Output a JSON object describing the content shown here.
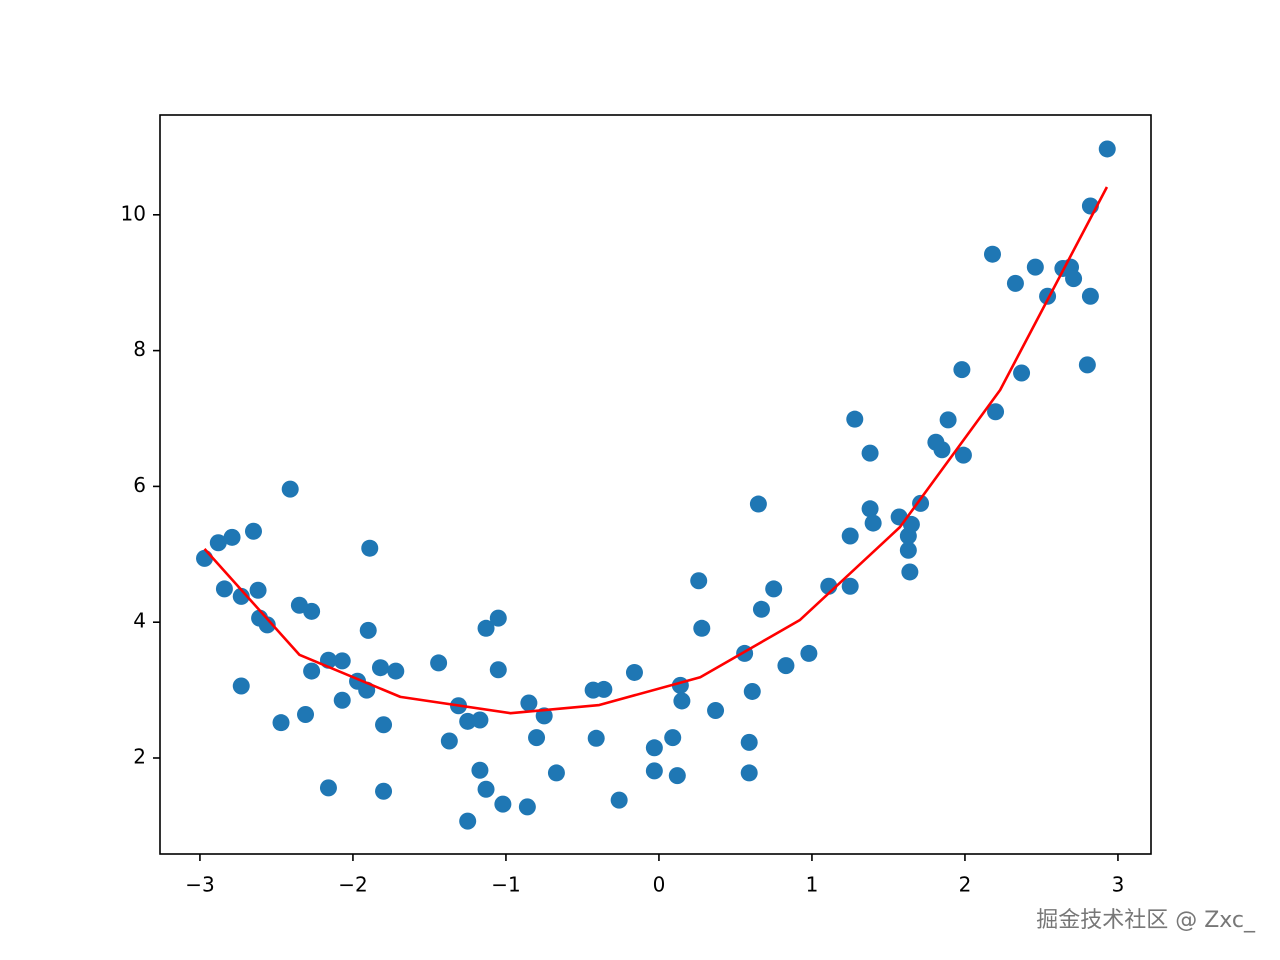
{
  "chart_data": {
    "type": "scatter",
    "xlim": [
      -3.261,
      3.216
    ],
    "ylim": [
      0.586,
      11.47
    ],
    "xticks": [
      {
        "value": -3,
        "label": "−3"
      },
      {
        "value": -2,
        "label": "−2"
      },
      {
        "value": -1,
        "label": "−1"
      },
      0,
      1,
      2,
      3
    ],
    "yticks": [
      2,
      4,
      6,
      8,
      10
    ],
    "grid": false,
    "watermark": "掘金技术社区 @ Zxc_",
    "series": [
      {
        "type": "scatter",
        "color": "#1f77b4",
        "x": [
          -2.97,
          -2.88,
          -2.79,
          -2.65,
          -2.84,
          -2.73,
          -2.62,
          -2.61,
          -2.56,
          -2.73,
          -2.41,
          -2.35,
          -2.27,
          -2.47,
          -2.31,
          -2.27,
          -2.16,
          -2.07,
          -2.16,
          -2.07,
          -1.97,
          -1.91,
          -1.9,
          -1.89,
          -1.82,
          -1.72,
          -1.8,
          -1.8,
          -1.44,
          -1.37,
          -1.31,
          -1.25,
          -1.25,
          -1.17,
          -1.17,
          -1.13,
          -1.13,
          -1.05,
          -1.05,
          -1.02,
          -0.86,
          -0.85,
          -0.8,
          -0.75,
          -0.67,
          -0.43,
          -0.36,
          -0.41,
          -0.26,
          -0.16,
          -0.03,
          -0.03,
          0.09,
          0.12,
          0.14,
          0.15,
          0.26,
          0.28,
          0.37,
          0.56,
          0.59,
          0.59,
          0.61,
          0.65,
          0.67,
          0.75,
          0.83,
          0.98,
          1.11,
          1.25,
          1.25,
          1.28,
          1.38,
          1.38,
          1.4,
          1.57,
          1.63,
          1.63,
          1.65,
          1.64,
          1.71,
          1.81,
          1.85,
          1.89,
          1.98,
          1.99,
          2.18,
          2.2,
          2.33,
          2.37,
          2.46,
          2.54,
          2.64,
          2.69,
          2.71,
          2.8,
          2.82,
          2.82,
          2.93
        ],
        "values": [
          4.94,
          5.17,
          5.25,
          5.34,
          4.49,
          4.38,
          4.47,
          4.06,
          3.96,
          3.06,
          5.96,
          4.25,
          4.16,
          2.52,
          2.64,
          3.28,
          3.44,
          3.43,
          1.56,
          2.85,
          3.13,
          3.0,
          3.88,
          5.09,
          3.33,
          3.28,
          2.49,
          1.51,
          3.4,
          2.25,
          2.77,
          1.07,
          2.54,
          2.56,
          1.82,
          1.54,
          3.91,
          4.06,
          3.3,
          1.32,
          1.28,
          2.81,
          2.3,
          2.62,
          1.78,
          3.0,
          3.01,
          2.29,
          1.38,
          3.26,
          2.15,
          1.81,
          2.3,
          1.74,
          3.07,
          2.84,
          4.61,
          3.91,
          2.7,
          3.54,
          2.23,
          1.78,
          2.98,
          5.74,
          4.19,
          4.49,
          3.36,
          3.54,
          4.53,
          5.27,
          4.53,
          6.99,
          6.49,
          5.67,
          5.46,
          5.55,
          5.06,
          5.27,
          5.44,
          4.74,
          5.75,
          6.65,
          6.54,
          6.98,
          7.72,
          6.46,
          9.42,
          7.1,
          8.99,
          7.67,
          9.23,
          8.8,
          9.21,
          9.23,
          9.06,
          7.79,
          8.8,
          10.13,
          10.97
        ]
      },
      {
        "type": "line",
        "color": "#ff0000",
        "x": [
          -2.97,
          -2.35,
          -1.69,
          -0.97,
          -0.39,
          0.27,
          0.92,
          1.575,
          2.23,
          2.928
        ],
        "values": [
          5.08,
          3.52,
          2.9,
          2.66,
          2.78,
          3.19,
          4.03,
          5.4,
          7.42,
          10.41
        ]
      }
    ]
  }
}
